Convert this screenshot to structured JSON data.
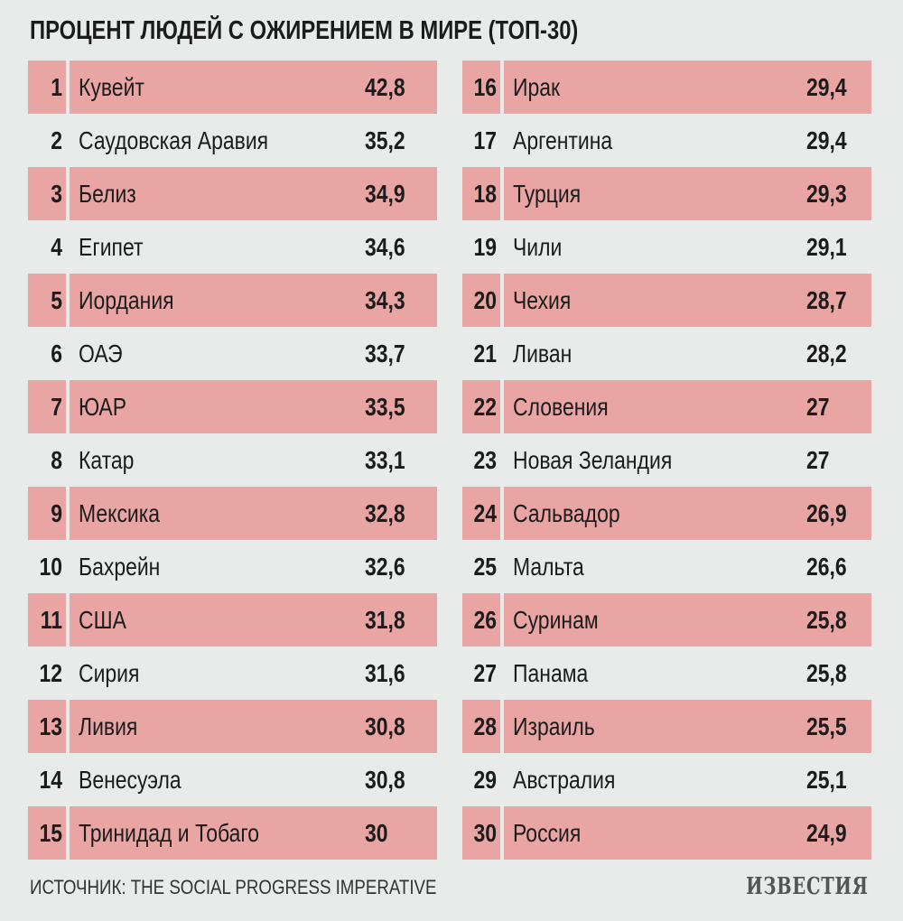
{
  "chart_data": {
    "type": "table",
    "title": "ПРОЦЕНТ ЛЮДЕЙ С ОЖИРЕНИЕМ В МИРЕ (ТОП-30)",
    "columns": [
      "rank",
      "country",
      "value"
    ],
    "rows": [
      {
        "rank": "1",
        "country": "Кувейт",
        "value": "42,8"
      },
      {
        "rank": "2",
        "country": "Саудовская Аравия",
        "value": "35,2"
      },
      {
        "rank": "3",
        "country": "Белиз",
        "value": "34,9"
      },
      {
        "rank": "4",
        "country": "Египет",
        "value": "34,6"
      },
      {
        "rank": "5",
        "country": "Иордания",
        "value": "34,3"
      },
      {
        "rank": "6",
        "country": "ОАЭ",
        "value": "33,7"
      },
      {
        "rank": "7",
        "country": "ЮАР",
        "value": "33,5"
      },
      {
        "rank": "8",
        "country": "Катар",
        "value": "33,1"
      },
      {
        "rank": "9",
        "country": "Мексика",
        "value": "32,8"
      },
      {
        "rank": "10",
        "country": "Бахрейн",
        "value": "32,6"
      },
      {
        "rank": "11",
        "country": "США",
        "value": "31,8"
      },
      {
        "rank": "12",
        "country": "Сирия",
        "value": "31,6"
      },
      {
        "rank": "13",
        "country": "Ливия",
        "value": "30,8"
      },
      {
        "rank": "14",
        "country": "Венесуэла",
        "value": "30,8"
      },
      {
        "rank": "15",
        "country": "Тринидад и Тобаго",
        "value": "30"
      },
      {
        "rank": "16",
        "country": "Ирак",
        "value": "29,4"
      },
      {
        "rank": "17",
        "country": "Аргентина",
        "value": "29,4"
      },
      {
        "rank": "18",
        "country": "Турция",
        "value": "29,3"
      },
      {
        "rank": "19",
        "country": "Чили",
        "value": "29,1"
      },
      {
        "rank": "20",
        "country": "Чехия",
        "value": "28,7"
      },
      {
        "rank": "21",
        "country": "Ливан",
        "value": "28,2"
      },
      {
        "rank": "22",
        "country": "Словения",
        "value": "27"
      },
      {
        "rank": "23",
        "country": "Новая Зеландия",
        "value": "27"
      },
      {
        "rank": "24",
        "country": "Сальвадор",
        "value": "26,9"
      },
      {
        "rank": "25",
        "country": "Мальта",
        "value": "26,6"
      },
      {
        "rank": "26",
        "country": "Суринам",
        "value": "25,8"
      },
      {
        "rank": "27",
        "country": "Панама",
        "value": "25,8"
      },
      {
        "rank": "28",
        "country": "Израиль",
        "value": "25,5"
      },
      {
        "rank": "29",
        "country": "Австралия",
        "value": "25,1"
      },
      {
        "rank": "30",
        "country": "Россия",
        "value": "24,9"
      }
    ],
    "row_highlight_color": "#e8a5a3",
    "background_color": "#e9eaea"
  },
  "source": "ИСТОЧНИК: THE SOCIAL PROGRESS IMPERATIVE",
  "logo": "ИЗВЕСТИЯ"
}
